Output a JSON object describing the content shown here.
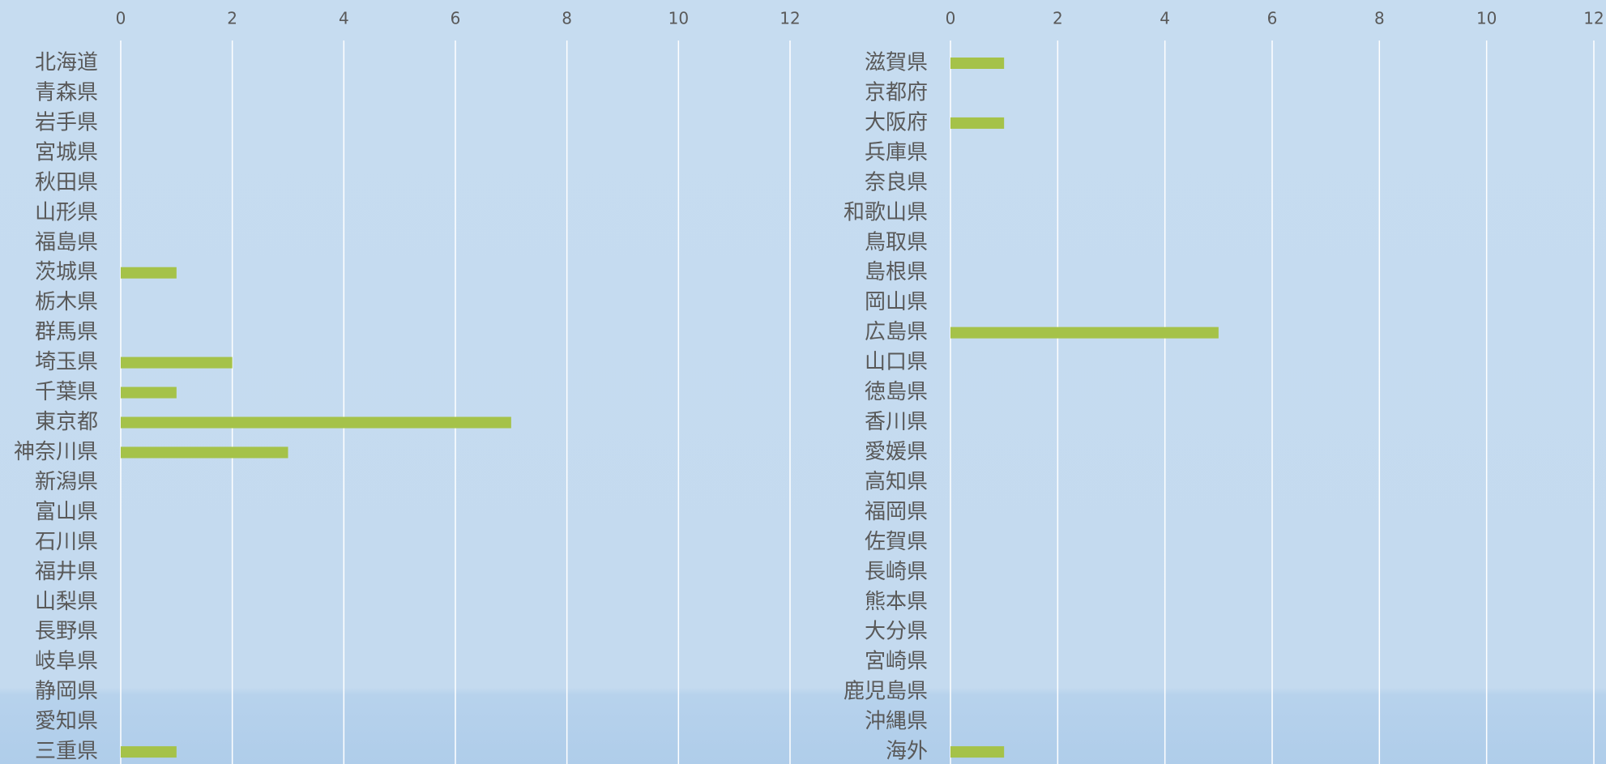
{
  "chart_data": [
    {
      "type": "bar",
      "orientation": "horizontal",
      "color": "#a5c249",
      "grid": true,
      "xlim": [
        0,
        12
      ],
      "xticks": [
        0,
        2,
        4,
        6,
        8,
        10,
        12
      ],
      "categories": [
        "北海道",
        "青森県",
        "岩手県",
        "宮城県",
        "秋田県",
        "山形県",
        "福島県",
        "茨城県",
        "栃木県",
        "群馬県",
        "埼玉県",
        "千葉県",
        "東京都",
        "神奈川県",
        "新潟県",
        "富山県",
        "石川県",
        "福井県",
        "山梨県",
        "長野県",
        "岐阜県",
        "静岡県",
        "愛知県",
        "三重県"
      ],
      "values": [
        0,
        0,
        0,
        0,
        0,
        0,
        0,
        1,
        0,
        0,
        2,
        1,
        7,
        3,
        0,
        0,
        0,
        0,
        0,
        0,
        0,
        0,
        0,
        1
      ]
    },
    {
      "type": "bar",
      "orientation": "horizontal",
      "color": "#a5c249",
      "grid": true,
      "xlim": [
        0,
        12
      ],
      "xticks": [
        0,
        2,
        4,
        6,
        8,
        10,
        12
      ],
      "categories": [
        "滋賀県",
        "京都府",
        "大阪府",
        "兵庫県",
        "奈良県",
        "和歌山県",
        "鳥取県",
        "島根県",
        "岡山県",
        "広島県",
        "山口県",
        "徳島県",
        "香川県",
        "愛媛県",
        "高知県",
        "福岡県",
        "佐賀県",
        "長崎県",
        "熊本県",
        "大分県",
        "宮崎県",
        "鹿児島県",
        "沖縄県",
        "海外"
      ],
      "values": [
        1,
        0,
        1,
        0,
        0,
        0,
        0,
        0,
        0,
        5,
        0,
        0,
        0,
        0,
        0,
        0,
        0,
        0,
        0,
        0,
        0,
        0,
        0,
        1
      ]
    }
  ]
}
